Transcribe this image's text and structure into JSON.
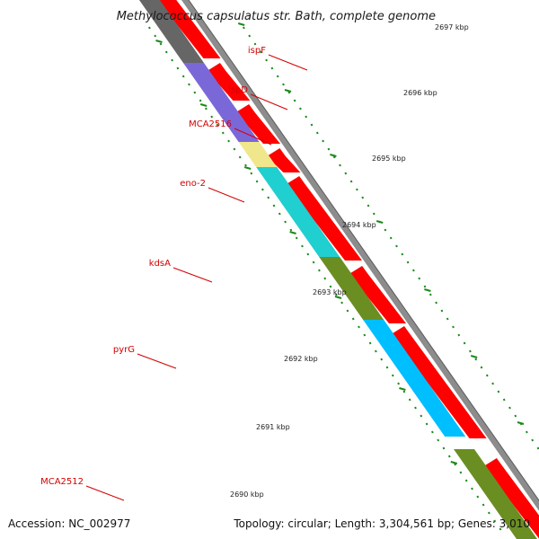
{
  "title": "Methylococcus capsulatus str. Bath, complete genome",
  "footer": {
    "accession": "Accession: NC_002977",
    "topology": "Topology: circular; Length: 3,304,561 bp; Genes: 3,010"
  },
  "colors": {
    "background": "#ffffff",
    "backbone": "#8c8c8c",
    "backbone_edge": "#5a5a5a",
    "cds": "#ff0000",
    "label": "#d40000",
    "label_line": "#d40000",
    "tick": "#1a8a1a"
  },
  "genes": [
    {
      "name": "ispF",
      "color": "#666666"
    },
    {
      "name": "ispD",
      "color": "#7b68d8"
    },
    {
      "name": "MCA2516",
      "color": "#f0e68c"
    },
    {
      "name": "eno-2",
      "color": "#20cfcf"
    },
    {
      "name": "kdsA",
      "color": "#6b8e23"
    },
    {
      "name": "pyrG",
      "color": "#00bfff"
    },
    {
      "name": "MCA2512",
      "color": "#6b8e23"
    }
  ],
  "kbp_labels": [
    "2697 kbp",
    "2696 kbp",
    "2695 kbp",
    "2694 kbp",
    "2693 kbp",
    "2692 kbp",
    "2691 kbp",
    "2690 kbp"
  ]
}
